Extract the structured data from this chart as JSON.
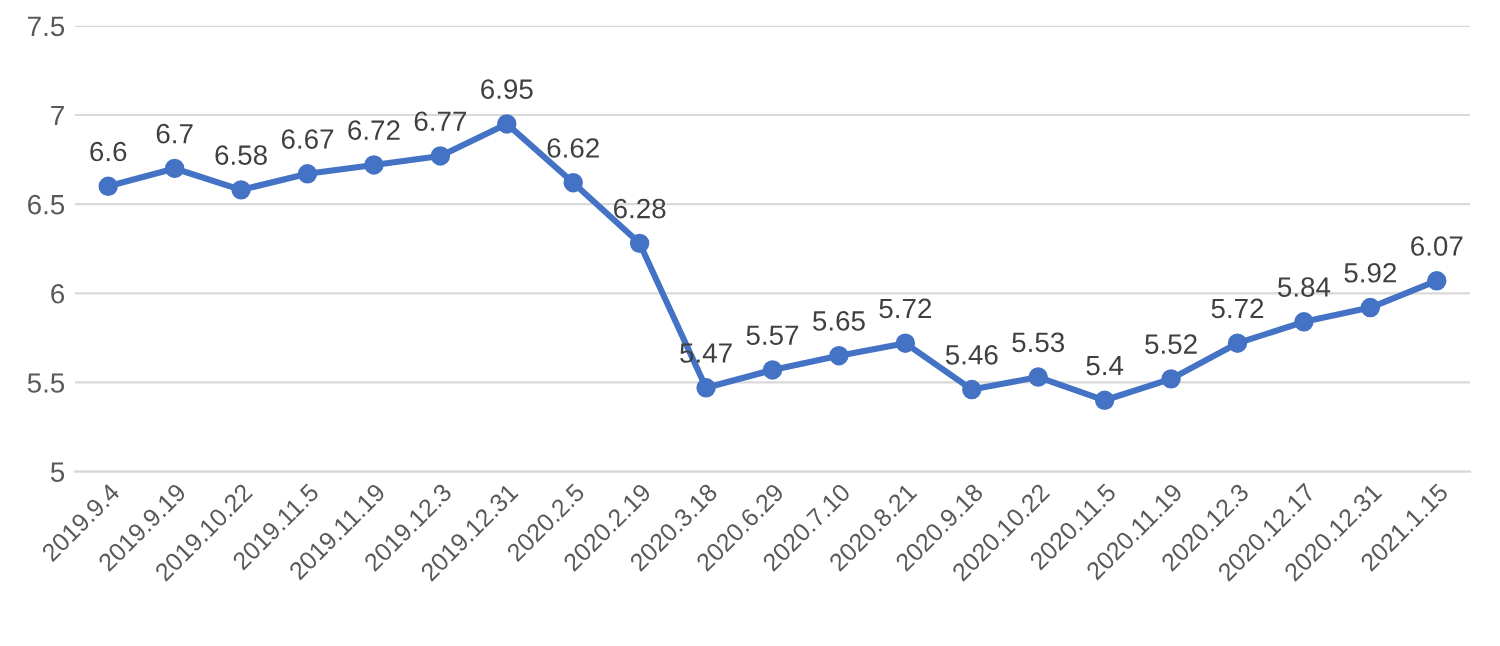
{
  "chart_data": {
    "type": "line",
    "categories": [
      "2019.9.4",
      "2019.9.19",
      "2019.10.22",
      "2019.11.5",
      "2019.11.19",
      "2019.12.3",
      "2019.12.31",
      "2020.2.5",
      "2020.2.19",
      "2020.3.18",
      "2020.6.29",
      "2020.7.10",
      "2020.8.21",
      "2020.9.18",
      "2020.10.22",
      "2020.11.5",
      "2020.11.19",
      "2020.12.3",
      "2020.12.17",
      "2020.12.31",
      "2021.1.15"
    ],
    "series": [
      {
        "color": "#4472c4",
        "values": [
          6.6,
          6.7,
          6.58,
          6.67,
          6.72,
          6.77,
          6.95,
          6.62,
          6.28,
          5.47,
          5.57,
          5.65,
          5.72,
          5.46,
          5.53,
          5.4,
          5.52,
          5.72,
          5.84,
          5.92,
          6.07
        ]
      }
    ],
    "ylim": [
      5,
      7.5
    ],
    "yticks": [
      5,
      5.5,
      6,
      6.5,
      7,
      7.5
    ],
    "grid": "y",
    "marker": "circle",
    "line_style": "solid",
    "data_labels": true
  }
}
